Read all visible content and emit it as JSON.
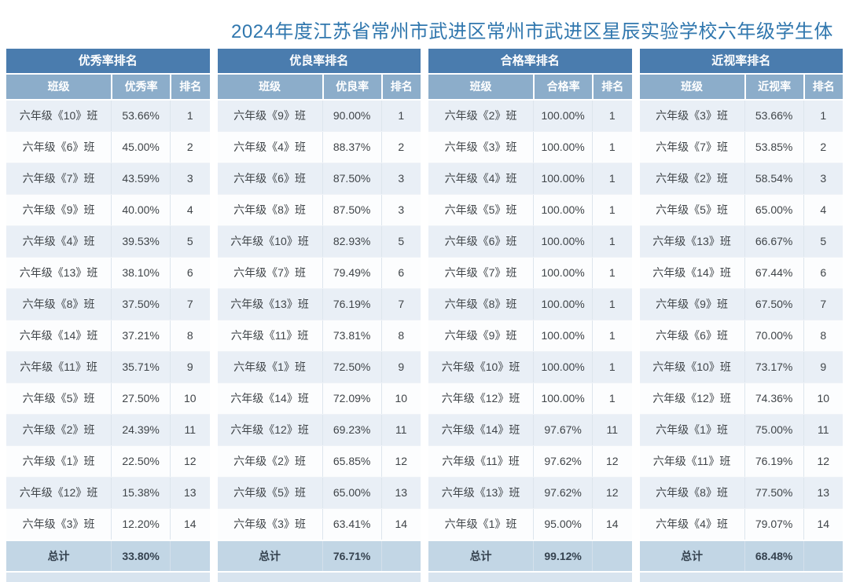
{
  "page": {
    "title": "2024年度江苏省常州市武进区常州市武进区星辰实验学校六年级学生体"
  },
  "colors": {
    "title_color": "#3077ae",
    "header_bg": "#4a7cae",
    "subheader_bg": "#8cadca",
    "row_odd_bg": "#e9eff6",
    "row_even_bg": "#fcfdfe",
    "total_bg": "#c2d6e5",
    "strip_bg": "#d8e4ef",
    "cell_text": "#3f4448",
    "total_text": "#35424f",
    "header_text": "#ffffff"
  },
  "chart_data": [
    {
      "type": "table",
      "title": "优秀率排名",
      "columns": [
        "班级",
        "优秀率",
        "排名"
      ],
      "rows": [
        [
          "六年级《10》班",
          "53.66%",
          "1"
        ],
        [
          "六年级《6》班",
          "45.00%",
          "2"
        ],
        [
          "六年级《7》班",
          "43.59%",
          "3"
        ],
        [
          "六年级《9》班",
          "40.00%",
          "4"
        ],
        [
          "六年级《4》班",
          "39.53%",
          "5"
        ],
        [
          "六年级《13》班",
          "38.10%",
          "6"
        ],
        [
          "六年级《8》班",
          "37.50%",
          "7"
        ],
        [
          "六年级《14》班",
          "37.21%",
          "8"
        ],
        [
          "六年级《11》班",
          "35.71%",
          "9"
        ],
        [
          "六年级《5》班",
          "27.50%",
          "10"
        ],
        [
          "六年级《2》班",
          "24.39%",
          "11"
        ],
        [
          "六年级《1》班",
          "22.50%",
          "12"
        ],
        [
          "六年级《12》班",
          "15.38%",
          "13"
        ],
        [
          "六年级《3》班",
          "12.20%",
          "14"
        ]
      ],
      "total_label": "总计",
      "total_value": "33.80%"
    },
    {
      "type": "table",
      "title": "优良率排名",
      "columns": [
        "班级",
        "优良率",
        "排名"
      ],
      "rows": [
        [
          "六年级《9》班",
          "90.00%",
          "1"
        ],
        [
          "六年级《4》班",
          "88.37%",
          "2"
        ],
        [
          "六年级《6》班",
          "87.50%",
          "3"
        ],
        [
          "六年级《8》班",
          "87.50%",
          "3"
        ],
        [
          "六年级《10》班",
          "82.93%",
          "5"
        ],
        [
          "六年级《7》班",
          "79.49%",
          "6"
        ],
        [
          "六年级《13》班",
          "76.19%",
          "7"
        ],
        [
          "六年级《11》班",
          "73.81%",
          "8"
        ],
        [
          "六年级《1》班",
          "72.50%",
          "9"
        ],
        [
          "六年级《14》班",
          "72.09%",
          "10"
        ],
        [
          "六年级《12》班",
          "69.23%",
          "11"
        ],
        [
          "六年级《2》班",
          "65.85%",
          "12"
        ],
        [
          "六年级《5》班",
          "65.00%",
          "13"
        ],
        [
          "六年级《3》班",
          "63.41%",
          "14"
        ]
      ],
      "total_label": "总计",
      "total_value": "76.71%"
    },
    {
      "type": "table",
      "title": "合格率排名",
      "columns": [
        "班级",
        "合格率",
        "排名"
      ],
      "rows": [
        [
          "六年级《2》班",
          "100.00%",
          "1"
        ],
        [
          "六年级《3》班",
          "100.00%",
          "1"
        ],
        [
          "六年级《4》班",
          "100.00%",
          "1"
        ],
        [
          "六年级《5》班",
          "100.00%",
          "1"
        ],
        [
          "六年级《6》班",
          "100.00%",
          "1"
        ],
        [
          "六年级《7》班",
          "100.00%",
          "1"
        ],
        [
          "六年级《8》班",
          "100.00%",
          "1"
        ],
        [
          "六年级《9》班",
          "100.00%",
          "1"
        ],
        [
          "六年级《10》班",
          "100.00%",
          "1"
        ],
        [
          "六年级《12》班",
          "100.00%",
          "1"
        ],
        [
          "六年级《14》班",
          "97.67%",
          "11"
        ],
        [
          "六年级《11》班",
          "97.62%",
          "12"
        ],
        [
          "六年级《13》班",
          "97.62%",
          "12"
        ],
        [
          "六年级《1》班",
          "95.00%",
          "14"
        ]
      ],
      "total_label": "总计",
      "total_value": "99.12%"
    },
    {
      "type": "table",
      "title": "近视率排名",
      "columns": [
        "班级",
        "近视率",
        "排名"
      ],
      "rows": [
        [
          "六年级《3》班",
          "53.66%",
          "1"
        ],
        [
          "六年级《7》班",
          "53.85%",
          "2"
        ],
        [
          "六年级《2》班",
          "58.54%",
          "3"
        ],
        [
          "六年级《5》班",
          "65.00%",
          "4"
        ],
        [
          "六年级《13》班",
          "66.67%",
          "5"
        ],
        [
          "六年级《14》班",
          "67.44%",
          "6"
        ],
        [
          "六年级《9》班",
          "67.50%",
          "7"
        ],
        [
          "六年级《6》班",
          "70.00%",
          "8"
        ],
        [
          "六年级《10》班",
          "73.17%",
          "9"
        ],
        [
          "六年级《12》班",
          "74.36%",
          "10"
        ],
        [
          "六年级《1》班",
          "75.00%",
          "11"
        ],
        [
          "六年级《11》班",
          "76.19%",
          "12"
        ],
        [
          "六年级《8》班",
          "77.50%",
          "13"
        ],
        [
          "六年级《4》班",
          "79.07%",
          "14"
        ]
      ],
      "total_label": "总计",
      "total_value": "68.48%"
    }
  ]
}
